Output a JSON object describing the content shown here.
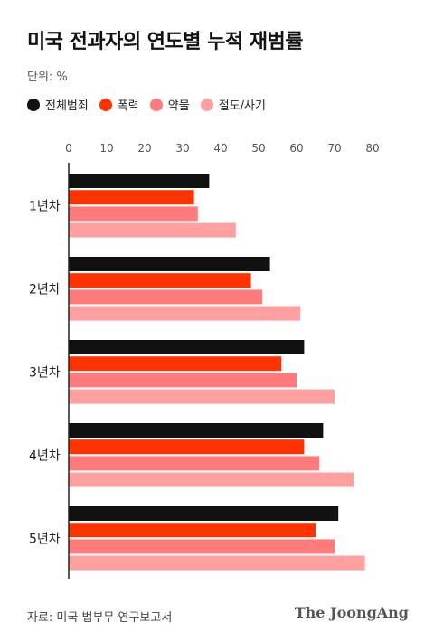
{
  "chart_data": {
    "type": "bar",
    "orientation": "horizontal",
    "title": "미국 전과자의 연도별 누적 재범률",
    "unit_label": "단위: %",
    "categories": [
      "1년차",
      "2년차",
      "3년차",
      "4년차",
      "5년차"
    ],
    "series": [
      {
        "name": "전체범죄",
        "color": "#111111",
        "values": [
          37,
          53,
          62,
          67,
          71
        ]
      },
      {
        "name": "폭력",
        "color": "#ff3300",
        "values": [
          33,
          48,
          56,
          62,
          65
        ]
      },
      {
        "name": "약물",
        "color": "#ff7b7b",
        "values": [
          34,
          51,
          60,
          66,
          70
        ]
      },
      {
        "name": "절도/사기",
        "color": "#ff9f9f",
        "values": [
          44,
          61,
          70,
          75,
          78
        ]
      }
    ],
    "xlim": [
      0,
      80
    ],
    "xticks": [
      "0",
      "10",
      "20",
      "30",
      "40",
      "50",
      "60",
      "70",
      "80"
    ],
    "grid": false,
    "legend_position": "top-left"
  },
  "footer": {
    "source": "자료: 미국 법부무 연구보고서",
    "logo": "The JoongAng"
  }
}
